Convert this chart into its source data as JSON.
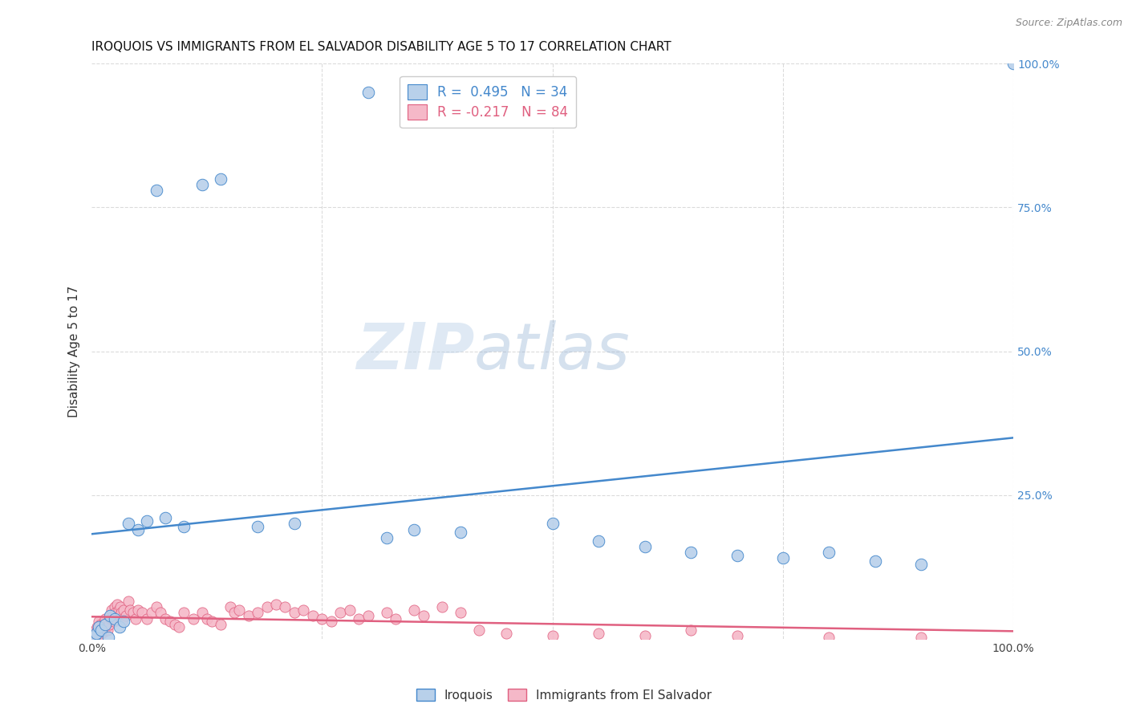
{
  "title": "IROQUOIS VS IMMIGRANTS FROM EL SALVADOR DISABILITY AGE 5 TO 17 CORRELATION CHART",
  "source": "Source: ZipAtlas.com",
  "ylabel": "Disability Age 5 to 17",
  "xlim": [
    0,
    100
  ],
  "ylim": [
    0,
    100
  ],
  "blue_color": "#b8d0ea",
  "pink_color": "#f5b8c8",
  "blue_line_color": "#4488cc",
  "pink_line_color": "#e06080",
  "watermark_zip": "ZIP",
  "watermark_atlas": "atlas",
  "background_color": "#ffffff",
  "grid_color": "#cccccc",
  "iroquois_label": "Iroquois",
  "immigrants_label": "Immigrants from El Salvador",
  "blue_dots": [
    [
      0.3,
      0.5
    ],
    [
      0.5,
      1.0
    ],
    [
      0.8,
      2.0
    ],
    [
      1.0,
      1.5
    ],
    [
      1.5,
      2.5
    ],
    [
      1.8,
      0.3
    ],
    [
      2.0,
      4.0
    ],
    [
      2.5,
      3.5
    ],
    [
      3.0,
      2.0
    ],
    [
      3.5,
      3.0
    ],
    [
      4.0,
      20.0
    ],
    [
      5.0,
      19.0
    ],
    [
      6.0,
      20.5
    ],
    [
      7.0,
      78.0
    ],
    [
      8.0,
      21.0
    ],
    [
      10.0,
      19.5
    ],
    [
      12.0,
      79.0
    ],
    [
      14.0,
      80.0
    ],
    [
      18.0,
      19.5
    ],
    [
      22.0,
      20.0
    ],
    [
      30.0,
      95.0
    ],
    [
      32.0,
      17.5
    ],
    [
      35.0,
      19.0
    ],
    [
      40.0,
      18.5
    ],
    [
      50.0,
      20.0
    ],
    [
      55.0,
      17.0
    ],
    [
      60.0,
      16.0
    ],
    [
      65.0,
      15.0
    ],
    [
      70.0,
      14.5
    ],
    [
      75.0,
      14.0
    ],
    [
      80.0,
      15.0
    ],
    [
      85.0,
      13.5
    ],
    [
      90.0,
      13.0
    ],
    [
      100.0,
      100.0
    ]
  ],
  "pink_dots": [
    [
      0.2,
      0.5
    ],
    [
      0.3,
      1.0
    ],
    [
      0.4,
      1.5
    ],
    [
      0.5,
      0.8
    ],
    [
      0.6,
      2.0
    ],
    [
      0.7,
      1.5
    ],
    [
      0.8,
      3.0
    ],
    [
      0.9,
      2.5
    ],
    [
      1.0,
      1.0
    ],
    [
      1.1,
      1.8
    ],
    [
      1.2,
      2.5
    ],
    [
      1.3,
      1.2
    ],
    [
      1.4,
      2.0
    ],
    [
      1.5,
      3.5
    ],
    [
      1.6,
      2.0
    ],
    [
      1.7,
      1.5
    ],
    [
      1.8,
      3.0
    ],
    [
      1.9,
      2.5
    ],
    [
      2.0,
      4.0
    ],
    [
      2.1,
      3.5
    ],
    [
      2.2,
      5.0
    ],
    [
      2.3,
      4.0
    ],
    [
      2.4,
      3.0
    ],
    [
      2.5,
      5.5
    ],
    [
      2.6,
      4.5
    ],
    [
      2.7,
      3.5
    ],
    [
      2.8,
      6.0
    ],
    [
      2.9,
      5.0
    ],
    [
      3.0,
      4.0
    ],
    [
      3.1,
      5.5
    ],
    [
      3.2,
      4.5
    ],
    [
      3.3,
      3.0
    ],
    [
      3.5,
      5.0
    ],
    [
      3.7,
      4.0
    ],
    [
      4.0,
      6.5
    ],
    [
      4.2,
      5.0
    ],
    [
      4.5,
      4.5
    ],
    [
      4.8,
      3.5
    ],
    [
      5.0,
      5.0
    ],
    [
      5.5,
      4.5
    ],
    [
      6.0,
      3.5
    ],
    [
      6.5,
      4.5
    ],
    [
      7.0,
      5.5
    ],
    [
      7.5,
      4.5
    ],
    [
      8.0,
      3.5
    ],
    [
      8.5,
      3.0
    ],
    [
      9.0,
      2.5
    ],
    [
      9.5,
      2.0
    ],
    [
      10.0,
      4.5
    ],
    [
      11.0,
      3.5
    ],
    [
      12.0,
      4.5
    ],
    [
      12.5,
      3.5
    ],
    [
      13.0,
      3.0
    ],
    [
      14.0,
      2.5
    ],
    [
      15.0,
      5.5
    ],
    [
      15.5,
      4.5
    ],
    [
      16.0,
      5.0
    ],
    [
      17.0,
      4.0
    ],
    [
      18.0,
      4.5
    ],
    [
      19.0,
      5.5
    ],
    [
      20.0,
      6.0
    ],
    [
      21.0,
      5.5
    ],
    [
      22.0,
      4.5
    ],
    [
      23.0,
      5.0
    ],
    [
      24.0,
      4.0
    ],
    [
      25.0,
      3.5
    ],
    [
      26.0,
      3.0
    ],
    [
      27.0,
      4.5
    ],
    [
      28.0,
      5.0
    ],
    [
      29.0,
      3.5
    ],
    [
      30.0,
      4.0
    ],
    [
      32.0,
      4.5
    ],
    [
      33.0,
      3.5
    ],
    [
      35.0,
      5.0
    ],
    [
      36.0,
      4.0
    ],
    [
      38.0,
      5.5
    ],
    [
      40.0,
      4.5
    ],
    [
      42.0,
      1.5
    ],
    [
      45.0,
      1.0
    ],
    [
      50.0,
      0.5
    ],
    [
      55.0,
      1.0
    ],
    [
      60.0,
      0.5
    ],
    [
      65.0,
      1.5
    ],
    [
      70.0,
      0.5
    ],
    [
      80.0,
      0.3
    ],
    [
      90.0,
      0.2
    ]
  ]
}
